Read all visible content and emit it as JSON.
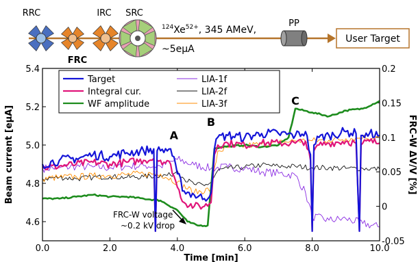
{
  "schematic": {
    "rings": [
      {
        "label": "RRC",
        "color": "#4a6fc0"
      },
      {
        "label": "FRC",
        "color": "#e6852a"
      },
      {
        "label": "IRC",
        "color": "#e6852a"
      },
      {
        "label": "SRC",
        "color": "#e9a0b4"
      }
    ],
    "beam_label_pre": "124",
    "beam_label_ion": "Xe",
    "beam_label_charge": "52+",
    "beam_label_rest": ", 345 AMeV,",
    "current_label": "~5eμA",
    "pp_label": "PP",
    "target_box_label": "User Target",
    "beamline_color": "#b5742a"
  },
  "chart_data": {
    "type": "line",
    "xlabel": "Time [min]",
    "ylabel": "Beam current [eμA]",
    "y2label": "FRC-W ΔV/V [%]",
    "xlim": [
      0,
      10
    ],
    "ylim": [
      4.5,
      5.4
    ],
    "y2lim": [
      -0.05,
      0.2
    ],
    "xticks": [
      "0.0",
      "2.0",
      "4.0",
      "6.0",
      "8.0",
      "10.0"
    ],
    "yticks": [
      "4.6",
      "4.8",
      "5.0",
      "5.2",
      "5.4"
    ],
    "y2ticks": [
      "-0.05",
      "0",
      "0.05",
      "0.1",
      "0.15",
      "0.2"
    ],
    "legend": [
      {
        "name": "Target",
        "color": "#1414d8"
      },
      {
        "name": "Integral cur.",
        "color": "#e0157a"
      },
      {
        "name": "WF amplitude",
        "color": "#1d8c1d"
      },
      {
        "name": "LIA-1f",
        "color": "#8a2be2"
      },
      {
        "name": "LIA-2f",
        "color": "#111111"
      },
      {
        "name": "LIA-3f",
        "color": "#ff8c00"
      }
    ],
    "annotations": [
      {
        "text": "A",
        "x": 3.9,
        "y": 5.03
      },
      {
        "text": "B",
        "x": 5.0,
        "y": 5.1
      },
      {
        "text": "C",
        "x": 7.5,
        "y": 5.21
      }
    ],
    "voltage_note": [
      "FRC-W voltage",
      "~0.2 kV drop"
    ],
    "series": [
      {
        "name": "Target",
        "axis": "y",
        "x": [
          0,
          0.5,
          1,
          1.5,
          2,
          2.5,
          3,
          3.3,
          3.35,
          3.4,
          3.5,
          3.8,
          4,
          4.2,
          4.5,
          4.8,
          5,
          5.1,
          5.2,
          5.5,
          6,
          6.5,
          7,
          7.5,
          7.8,
          7.95,
          8.0,
          8.05,
          8.2,
          8.5,
          9,
          9.3,
          9.4,
          9.45,
          9.5,
          9.7,
          10
        ],
        "y": [
          4.9,
          4.92,
          4.93,
          4.95,
          4.94,
          4.96,
          4.97,
          4.98,
          4.55,
          4.97,
          4.97,
          4.98,
          4.85,
          4.76,
          4.74,
          4.72,
          4.75,
          4.98,
          5.04,
          5.05,
          5.04,
          5.06,
          5.06,
          5.05,
          5.07,
          4.95,
          4.55,
          5.0,
          5.04,
          5.05,
          5.07,
          5.06,
          4.55,
          5.05,
          5.05,
          5.06,
          5.05
        ]
      },
      {
        "name": "Integral cur.",
        "axis": "y",
        "x": [
          0,
          0.5,
          1,
          1.5,
          2,
          2.5,
          3,
          3.3,
          3.35,
          3.4,
          3.5,
          3.8,
          4,
          4.2,
          4.5,
          4.8,
          5,
          5.1,
          5.2,
          5.5,
          6,
          6.5,
          7,
          7.5,
          7.8,
          7.95,
          8.0,
          8.05,
          8.2,
          8.5,
          9,
          9.3,
          9.4,
          9.45,
          9.5,
          9.7,
          10
        ],
        "y": [
          4.88,
          4.89,
          4.9,
          4.91,
          4.9,
          4.91,
          4.92,
          4.93,
          4.55,
          4.92,
          4.92,
          4.9,
          4.78,
          4.7,
          4.68,
          4.68,
          4.7,
          4.95,
          5.0,
          5.01,
          5.0,
          5.01,
          5.01,
          5.01,
          5.02,
          4.92,
          4.55,
          4.97,
          5.0,
          5.01,
          5.02,
          5.01,
          4.55,
          5.0,
          5.01,
          5.02,
          5.01
        ]
      },
      {
        "name": "WF amplitude",
        "axis": "y",
        "x": [
          0,
          0.5,
          1,
          1.5,
          2,
          2.5,
          3,
          3.5,
          4,
          4.3,
          4.6,
          4.9,
          5.1,
          5.3,
          6,
          6.5,
          7,
          7.3,
          7.5,
          8,
          8.5,
          9,
          9.5,
          10
        ],
        "y": [
          4.72,
          4.72,
          4.73,
          4.74,
          4.73,
          4.73,
          4.72,
          4.71,
          4.66,
          4.6,
          4.58,
          4.58,
          4.98,
          4.99,
          5.0,
          4.99,
          5.0,
          5.04,
          5.19,
          5.17,
          5.15,
          5.18,
          5.19,
          5.23
        ]
      },
      {
        "name": "LIA-1f",
        "axis": "y2",
        "x": [
          0,
          0.5,
          1,
          1.5,
          2,
          2.5,
          3,
          3.5,
          4,
          4.5,
          5,
          5.5,
          6,
          6.5,
          7,
          7.5,
          7.8,
          8,
          8.5,
          9,
          9.5,
          10
        ],
        "y": [
          0.055,
          0.056,
          0.058,
          0.057,
          0.056,
          0.058,
          0.059,
          0.058,
          0.068,
          0.06,
          0.055,
          0.057,
          0.055,
          0.05,
          0.048,
          0.045,
          0.02,
          -0.015,
          -0.02,
          -0.018,
          -0.025,
          -0.03
        ]
      },
      {
        "name": "LIA-2f",
        "axis": "y2",
        "x": [
          0,
          0.5,
          1,
          1.5,
          2,
          2.5,
          3,
          3.5,
          3.8,
          4,
          4.2,
          4.5,
          4.8,
          5,
          5.2,
          5.5,
          6,
          6.5,
          7,
          7.5,
          8,
          8.5,
          9,
          9.5,
          10
        ],
        "y": [
          0.04,
          0.042,
          0.04,
          0.042,
          0.043,
          0.042,
          0.043,
          0.045,
          0.045,
          0.052,
          0.04,
          0.032,
          0.03,
          0.035,
          0.052,
          0.055,
          0.057,
          0.06,
          0.058,
          0.058,
          0.056,
          0.056,
          0.055,
          0.055,
          0.054
        ]
      },
      {
        "name": "LIA-3f",
        "axis": "y2",
        "x": [
          0,
          0.5,
          1,
          1.5,
          2,
          2.5,
          3,
          3.5,
          4,
          4.5,
          5,
          5.2,
          5.5,
          6,
          6.5,
          7,
          7.5,
          8,
          8.5,
          9,
          9.5,
          10
        ],
        "y": [
          0.04,
          0.042,
          0.043,
          0.044,
          0.045,
          0.046,
          0.047,
          0.047,
          0.035,
          0.02,
          0.025,
          0.08,
          0.085,
          0.088,
          0.09,
          0.092,
          0.095,
          0.095,
          0.096,
          0.098,
          0.1,
          0.1
        ]
      }
    ]
  }
}
